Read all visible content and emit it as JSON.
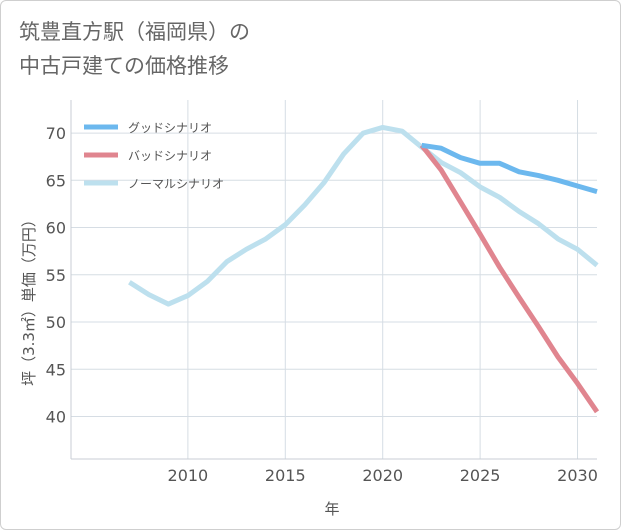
{
  "title": {
    "line1": "筑豊直方駅（福岡県）の",
    "line2": "中古戸建ての価格推移"
  },
  "chart_data": {
    "type": "line",
    "xlabel": "年",
    "ylabel": "坪（3.3㎡）単価（万円）",
    "xlim": [
      2004,
      2031
    ],
    "ylim": [
      35.5,
      73.5
    ],
    "xticks": [
      2010,
      2015,
      2020,
      2025,
      2030
    ],
    "yticks": [
      40,
      45,
      50,
      55,
      60,
      65,
      70
    ],
    "grid": true,
    "legend_position": "top-left",
    "series": [
      {
        "name": "グッドシナリオ",
        "color": "#6cb8ee",
        "x": [
          2022,
          2023,
          2024,
          2025,
          2026,
          2027,
          2028,
          2029,
          2030,
          2031
        ],
        "values": [
          68.7,
          68.4,
          67.4,
          66.8,
          66.8,
          65.9,
          65.5,
          65.0,
          64.4,
          63.8
        ]
      },
      {
        "name": "バッドシナリオ",
        "color": "#e0858f",
        "x": [
          2022,
          2023,
          2024,
          2025,
          2026,
          2027,
          2028,
          2029,
          2030,
          2031
        ],
        "values": [
          68.7,
          66.1,
          62.7,
          59.3,
          55.8,
          52.6,
          49.5,
          46.3,
          43.5,
          40.5
        ]
      },
      {
        "name": "ノーマルシナリオ",
        "color": "#bde0ee",
        "x": [
          2007,
          2008,
          2009,
          2010,
          2011,
          2012,
          2013,
          2014,
          2015,
          2016,
          2017,
          2018,
          2019,
          2020,
          2021,
          2022,
          2023,
          2024,
          2025,
          2026,
          2027,
          2028,
          2029,
          2030,
          2031
        ],
        "values": [
          54.2,
          52.9,
          51.9,
          52.8,
          54.3,
          56.4,
          57.7,
          58.8,
          60.3,
          62.4,
          64.8,
          67.8,
          70.0,
          70.6,
          70.2,
          68.5,
          66.9,
          65.8,
          64.3,
          63.2,
          61.7,
          60.4,
          58.8,
          57.7,
          56.0
        ]
      }
    ]
  }
}
